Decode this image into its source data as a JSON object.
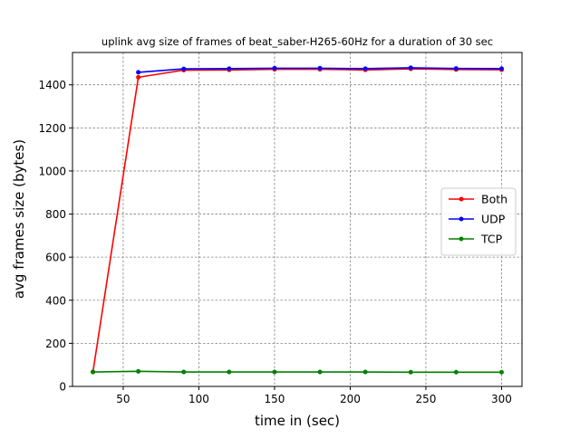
{
  "chart_data": {
    "type": "line",
    "title": "uplink avg size of frames of beat_saber-H265-60Hz for a duration of 30 sec",
    "xlabel": "time in (sec)",
    "ylabel": "avg frames size (bytes)",
    "xlim": [
      16.5,
      313.5
    ],
    "ylim": [
      0,
      1550
    ],
    "xticks": [
      50,
      100,
      150,
      200,
      250,
      300
    ],
    "yticks": [
      0,
      200,
      400,
      600,
      800,
      1000,
      1200,
      1400
    ],
    "grid": true,
    "legend_position": "center-right",
    "series": [
      {
        "name": "Both",
        "color": "#ff0000",
        "x": [
          30,
          60,
          90,
          120,
          150,
          180,
          210,
          240,
          270,
          300
        ],
        "y": [
          67,
          1435,
          1468,
          1469,
          1472,
          1472,
          1469,
          1474,
          1471,
          1470
        ]
      },
      {
        "name": "UDP",
        "color": "#0000ff",
        "x": [
          60,
          90,
          120,
          150,
          180,
          210,
          240,
          270,
          300
        ],
        "y": [
          1458,
          1474,
          1475,
          1477,
          1477,
          1475,
          1479,
          1476,
          1475
        ]
      },
      {
        "name": "TCP",
        "color": "#008000",
        "x": [
          30,
          60,
          90,
          120,
          150,
          180,
          210,
          240,
          270,
          300
        ],
        "y": [
          67,
          70,
          67,
          67,
          67,
          67,
          67,
          66,
          66,
          66
        ]
      }
    ]
  }
}
